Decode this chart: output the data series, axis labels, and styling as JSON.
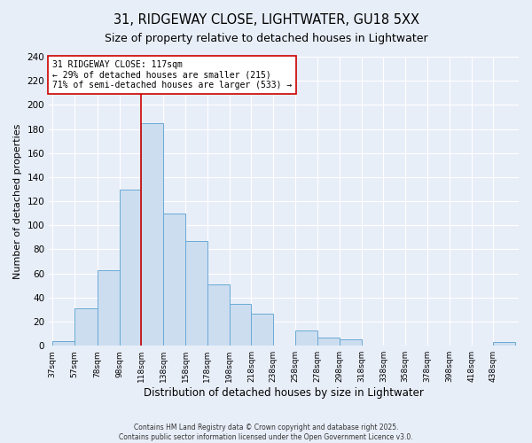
{
  "title": "31, RIDGEWAY CLOSE, LIGHTWATER, GU18 5XX",
  "subtitle": "Size of property relative to detached houses in Lightwater",
  "xlabel": "Distribution of detached houses by size in Lightwater",
  "ylabel": "Number of detached properties",
  "bar_edges": [
    37,
    57,
    78,
    98,
    118,
    138,
    158,
    178,
    198,
    218,
    238,
    258,
    278,
    298,
    318,
    338,
    358,
    378,
    398,
    418,
    438,
    458
  ],
  "bar_heights": [
    4,
    31,
    63,
    130,
    185,
    110,
    87,
    51,
    35,
    27,
    0,
    13,
    7,
    5,
    0,
    0,
    0,
    0,
    0,
    0,
    3
  ],
  "bar_color": "#ccddf0",
  "bar_edge_color": "#6aaad4",
  "vline_x": 118,
  "vline_color": "#cc0000",
  "annotation_text": "31 RIDGEWAY CLOSE: 117sqm\n← 29% of detached houses are smaller (215)\n71% of semi-detached houses are larger (533) →",
  "annotation_box_color": "#ffffff",
  "annotation_box_edge_color": "#cc0000",
  "ylim": [
    0,
    240
  ],
  "yticks": [
    0,
    20,
    40,
    60,
    80,
    100,
    120,
    140,
    160,
    180,
    200,
    220,
    240
  ],
  "bg_color": "#e8eef8",
  "grid_color": "#ffffff",
  "footer_line1": "Contains HM Land Registry data © Crown copyright and database right 2025.",
  "footer_line2": "Contains public sector information licensed under the Open Government Licence v3.0."
}
